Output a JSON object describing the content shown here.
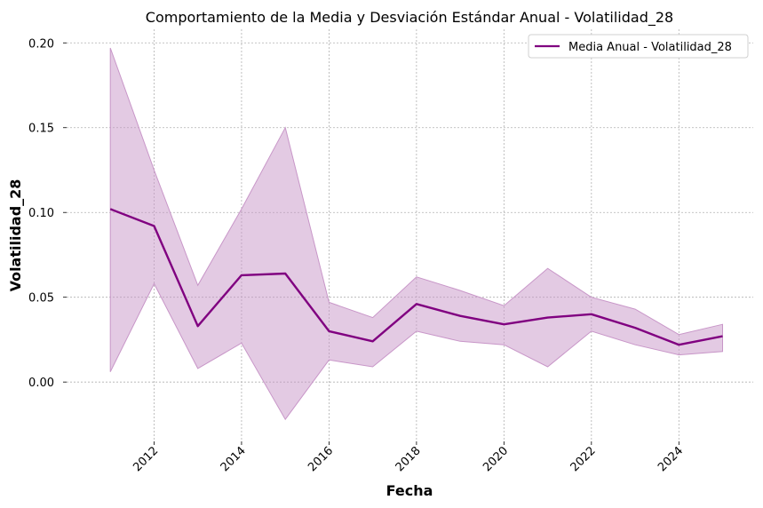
{
  "chart_data": {
    "type": "line",
    "title": "Comportamiento de la Media y Desviación Estándar Anual - Volatilidad_28",
    "xlabel": "Fecha",
    "ylabel": "Volatilidad_28",
    "xlim": [
      2010.0,
      2025.7
    ],
    "ylim": [
      -0.035,
      0.208
    ],
    "x_ticks": [
      2012,
      2014,
      2016,
      2018,
      2020,
      2022,
      2024
    ],
    "y_ticks": [
      0.0,
      0.05,
      0.1,
      0.15,
      0.2
    ],
    "y_tick_labels": [
      "0.00",
      "0.05",
      "0.10",
      "0.15",
      "0.20"
    ],
    "grid": true,
    "legend_position": "top-right",
    "x": [
      2011,
      2012,
      2013,
      2014,
      2015,
      2016,
      2017,
      2018,
      2019,
      2020,
      2021,
      2022,
      2023,
      2024,
      2025
    ],
    "series": [
      {
        "name": "Media Anual - Volatilidad_28",
        "color": "#800080",
        "values": [
          0.102,
          0.092,
          0.033,
          0.063,
          0.064,
          0.03,
          0.024,
          0.046,
          0.039,
          0.034,
          0.038,
          0.04,
          0.032,
          0.022,
          0.027
        ]
      }
    ],
    "band": {
      "color": "#c896c8",
      "upper": [
        0.197,
        0.125,
        0.057,
        0.102,
        0.15,
        0.047,
        0.038,
        0.062,
        0.054,
        0.045,
        0.067,
        0.05,
        0.043,
        0.028,
        0.034
      ],
      "lower": [
        0.006,
        0.058,
        0.008,
        0.023,
        -0.022,
        0.013,
        0.009,
        0.03,
        0.024,
        0.022,
        0.009,
        0.03,
        0.022,
        0.016,
        0.018
      ]
    }
  }
}
